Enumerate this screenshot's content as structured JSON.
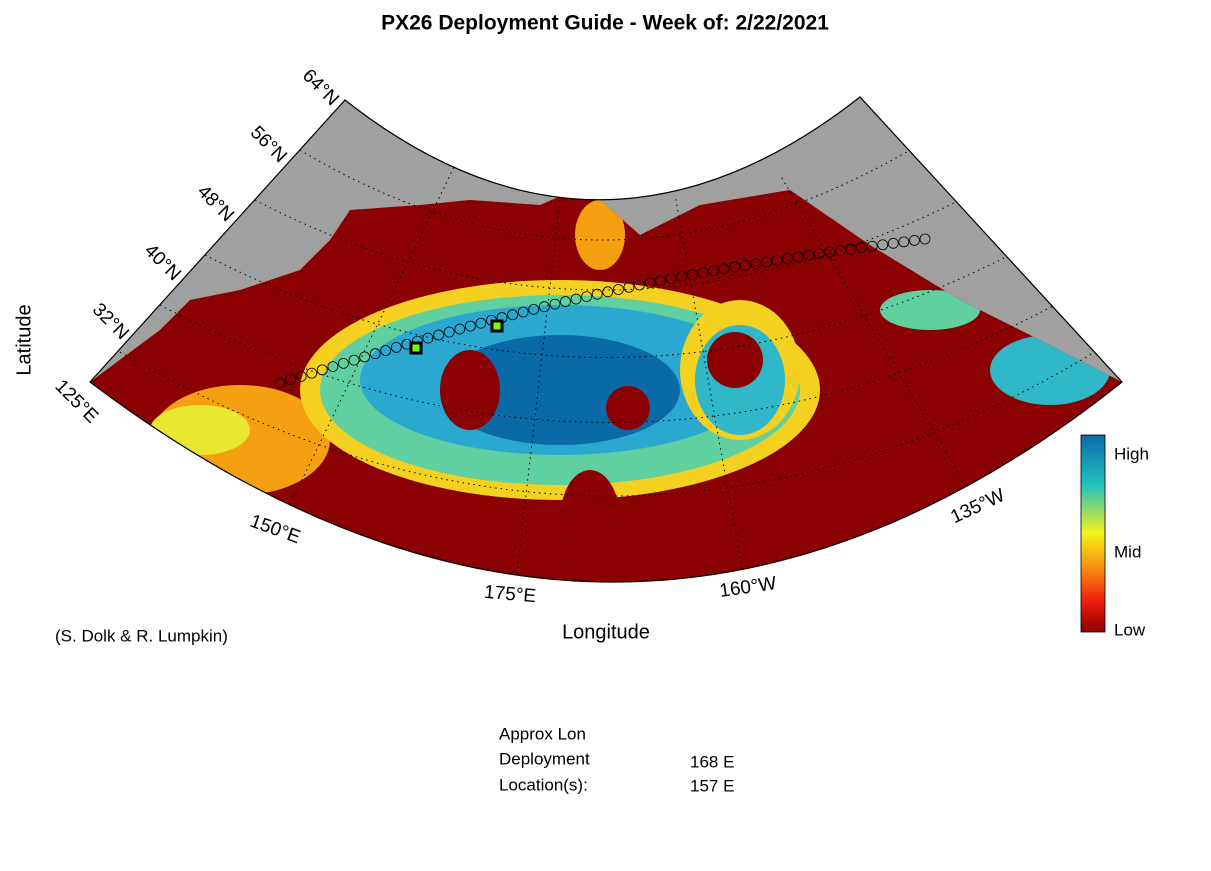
{
  "title": "PX26 Deployment Guide - Week of: 2/22/2021",
  "map": {
    "lat_labels": [
      "64°N",
      "56°N",
      "48°N",
      "40°N",
      "32°N"
    ],
    "lon_labels": [
      "125°E",
      "150°E",
      "175°E",
      "160°W",
      "135°W"
    ],
    "x_label": "Longitude",
    "y_label": "Latitude"
  },
  "colorbar": {
    "labels": [
      "High",
      "Mid",
      "Low"
    ]
  },
  "credit": "(S. Dolk & R. Lumpkin)",
  "table": {
    "labels": [
      "Approx Lon",
      "Deployment",
      "Location(s):"
    ],
    "values": [
      "168 E",
      "157 E"
    ]
  }
}
